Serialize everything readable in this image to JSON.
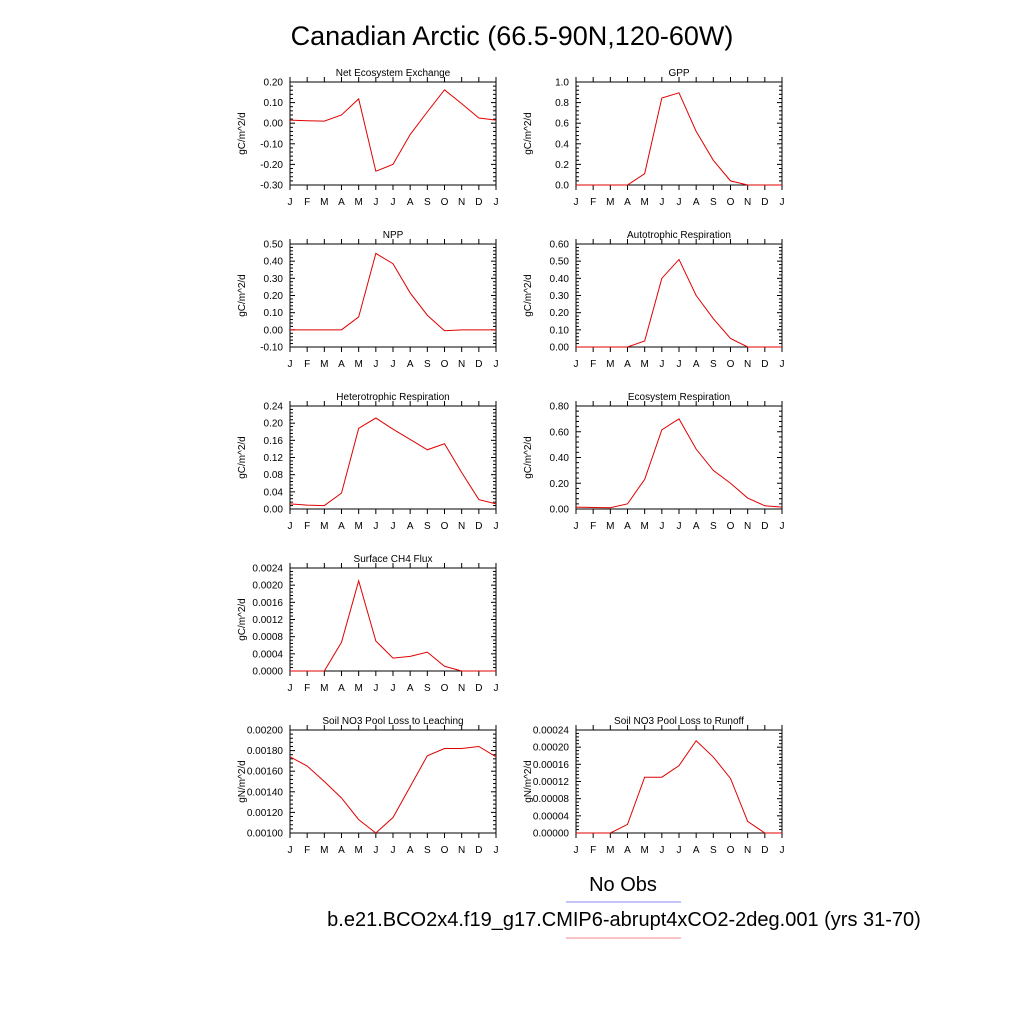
{
  "figure": {
    "title": "Canadian Arctic (66.5-90N,120-60W)",
    "legend": {
      "obs_label": "No Obs",
      "obs_color": "#8a8af0",
      "model_label": "b.e21.BCO2x4.f19_g17.CMIP6-abrupt4xCO2-2deg.001 (yrs 31-70)",
      "model_color": "#f08a8a"
    },
    "series_color": "#e00000"
  },
  "chart_data": [
    {
      "type": "line",
      "title": "Net Ecosystem Exchange",
      "ylabel": "gC/m^2/d",
      "categories": [
        "J",
        "F",
        "M",
        "A",
        "M",
        "J",
        "J",
        "A",
        "S",
        "O",
        "N",
        "D",
        "J"
      ],
      "ylim": [
        -0.3,
        0.2
      ],
      "yticks": [
        "0.20",
        "0.10",
        "0.00",
        "-0.10",
        "-0.20",
        "-0.30"
      ],
      "values": [
        0.015,
        0.012,
        0.01,
        0.04,
        0.118,
        -0.233,
        -0.2,
        -0.055,
        0.055,
        0.162,
        0.095,
        0.025,
        0.015
      ]
    },
    {
      "type": "line",
      "title": "GPP",
      "ylabel": "gC/m^2/d",
      "categories": [
        "J",
        "F",
        "M",
        "A",
        "M",
        "J",
        "J",
        "A",
        "S",
        "O",
        "N",
        "D",
        "J"
      ],
      "ylim": [
        0.0,
        1.0
      ],
      "yticks": [
        "1.0",
        "0.8",
        "0.6",
        "0.4",
        "0.2",
        "0.0"
      ],
      "values": [
        0.0,
        0.0,
        0.0,
        0.0,
        0.11,
        0.845,
        0.895,
        0.52,
        0.24,
        0.04,
        0.0,
        0.0,
        0.0
      ]
    },
    {
      "type": "line",
      "title": "NPP",
      "ylabel": "gC/m^2/d",
      "categories": [
        "J",
        "F",
        "M",
        "A",
        "M",
        "J",
        "J",
        "A",
        "S",
        "O",
        "N",
        "D",
        "J"
      ],
      "ylim": [
        -0.1,
        0.5
      ],
      "yticks": [
        "0.50",
        "0.40",
        "0.30",
        "0.20",
        "0.10",
        "0.00",
        "-0.10"
      ],
      "values": [
        0.0,
        0.0,
        0.0,
        0.0,
        0.075,
        0.445,
        0.385,
        0.215,
        0.085,
        -0.005,
        0.0,
        0.0,
        0.0
      ]
    },
    {
      "type": "line",
      "title": "Autotrophic Respiration",
      "ylabel": "gC/m^2/d",
      "categories": [
        "J",
        "F",
        "M",
        "A",
        "M",
        "J",
        "J",
        "A",
        "S",
        "O",
        "N",
        "D",
        "J"
      ],
      "ylim": [
        0.0,
        0.6
      ],
      "yticks": [
        "0.60",
        "0.50",
        "0.40",
        "0.30",
        "0.20",
        "0.10",
        "0.00"
      ],
      "values": [
        0.0,
        0.0,
        0.0,
        0.0,
        0.035,
        0.4,
        0.51,
        0.3,
        0.165,
        0.05,
        0.0,
        0.0,
        0.0
      ]
    },
    {
      "type": "line",
      "title": "Heterotrophic Respiration",
      "ylabel": "gC/m^2/d",
      "categories": [
        "J",
        "F",
        "M",
        "A",
        "M",
        "J",
        "J",
        "A",
        "S",
        "O",
        "N",
        "D",
        "J"
      ],
      "ylim": [
        0.0,
        0.24
      ],
      "yticks": [
        "0.24",
        "0.20",
        "0.16",
        "0.12",
        "0.08",
        "0.04",
        "0.00"
      ],
      "values": [
        0.012,
        0.009,
        0.008,
        0.037,
        0.188,
        0.212,
        0.186,
        0.162,
        0.138,
        0.152,
        0.085,
        0.022,
        0.012
      ]
    },
    {
      "type": "line",
      "title": "Ecosystem Respiration",
      "ylabel": "gC/m^2/d",
      "categories": [
        "J",
        "F",
        "M",
        "A",
        "M",
        "J",
        "J",
        "A",
        "S",
        "O",
        "N",
        "D",
        "J"
      ],
      "ylim": [
        0.0,
        0.8
      ],
      "yticks": [
        "0.80",
        "0.60",
        "0.40",
        "0.20",
        "0.00"
      ],
      "values": [
        0.015,
        0.012,
        0.01,
        0.04,
        0.23,
        0.615,
        0.7,
        0.465,
        0.3,
        0.2,
        0.085,
        0.025,
        0.015
      ]
    },
    {
      "type": "line",
      "title": "Surface CH4 Flux",
      "ylabel": "gC/m^2/d",
      "categories": [
        "J",
        "F",
        "M",
        "A",
        "M",
        "J",
        "J",
        "A",
        "S",
        "O",
        "N",
        "D",
        "J"
      ],
      "ylim": [
        0.0,
        0.0024
      ],
      "yticks": [
        "0.0024",
        "0.0020",
        "0.0016",
        "0.0012",
        "0.0008",
        "0.0004",
        "0.0000"
      ],
      "values": [
        0.0,
        0.0,
        0.0,
        0.00067,
        0.0021,
        0.0007,
        0.0003,
        0.00034,
        0.00044,
        0.00011,
        0.0,
        0.0,
        0.0
      ]
    },
    {
      "type": "line",
      "title": "Soil NO3 Pool Loss to Leaching",
      "ylabel": "gN/m^2/d",
      "categories": [
        "J",
        "F",
        "M",
        "A",
        "M",
        "J",
        "J",
        "A",
        "S",
        "O",
        "N",
        "D",
        "J"
      ],
      "ylim": [
        0.001,
        0.002
      ],
      "yticks": [
        "0.00200",
        "0.00180",
        "0.00160",
        "0.00140",
        "0.00120",
        "0.00100"
      ],
      "values": [
        0.00174,
        0.00165,
        0.0015,
        0.00134,
        0.00113,
        0.001,
        0.00115,
        0.00145,
        0.00175,
        0.00182,
        0.00182,
        0.00184,
        0.00174
      ]
    },
    {
      "type": "line",
      "title": "Soil NO3 Pool Loss to Runoff",
      "ylabel": "gN/m^2/d",
      "categories": [
        "J",
        "F",
        "M",
        "A",
        "M",
        "J",
        "J",
        "A",
        "S",
        "O",
        "N",
        "D",
        "J"
      ],
      "ylim": [
        0.0,
        0.00024
      ],
      "yticks": [
        "0.00024",
        "0.00020",
        "0.00016",
        "0.00012",
        "0.00008",
        "0.00004",
        "0.00000"
      ],
      "values": [
        0.0,
        0.0,
        0.0,
        2e-05,
        0.00013,
        0.00013,
        0.000157,
        0.000215,
        0.000177,
        0.000127,
        2.7e-05,
        0.0,
        0.0
      ]
    }
  ]
}
